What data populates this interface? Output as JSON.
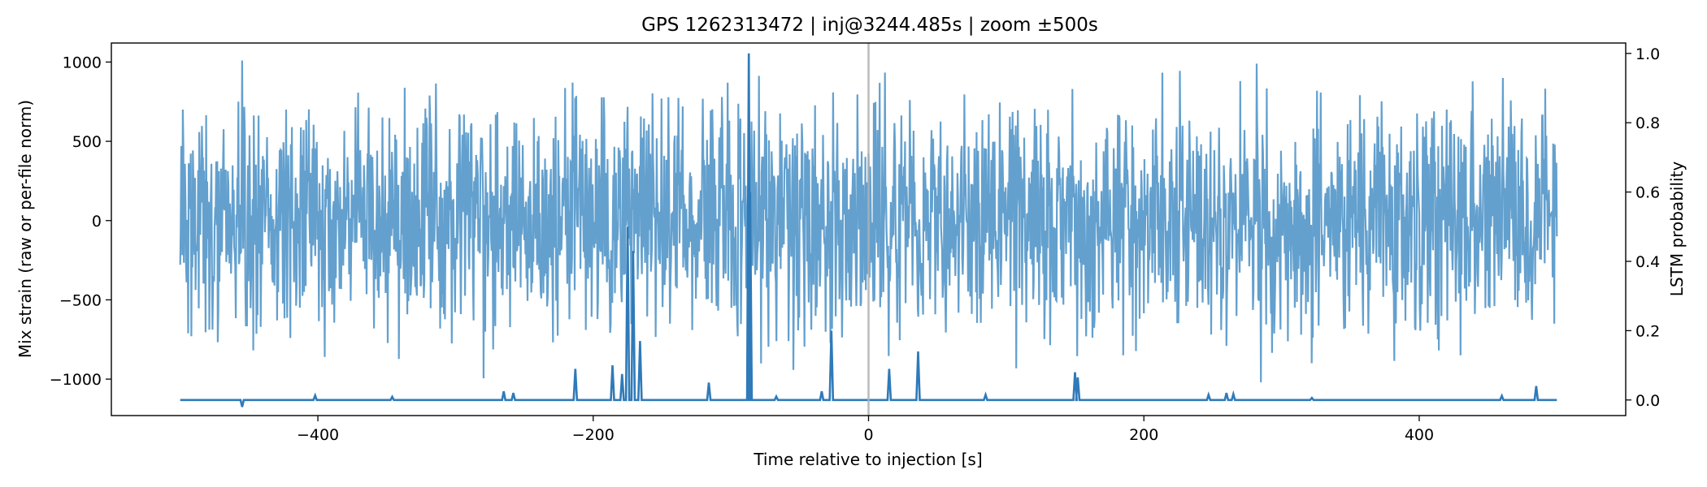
{
  "chart_data": {
    "type": "line",
    "title": "GPS 1262313472 | inj@3244.485s | zoom ±500s",
    "xlabel": "Time relative to injection [s]",
    "ylabel": "Mix strain (raw or per-file norm)",
    "y2label": "LSTM probability",
    "xlim": [
      -550,
      550
    ],
    "ylim": [
      -1230,
      1120
    ],
    "y2lim": [
      -0.045,
      1.03
    ],
    "xticks": [
      -400,
      -200,
      0,
      200,
      400
    ],
    "yticks": [
      -1000,
      -500,
      0,
      500,
      1000
    ],
    "y2ticks": [
      0.0,
      0.2,
      0.4,
      0.6,
      0.8,
      1.0
    ],
    "xtick_labels": [
      "−400",
      "−200",
      "0",
      "200",
      "400"
    ],
    "ytick_labels": [
      "−1000",
      "−500",
      "0",
      "500",
      "1000"
    ],
    "y2tick_labels": [
      "0.0",
      "0.2",
      "0.4",
      "0.6",
      "0.8",
      "1.0"
    ],
    "injection_marker_x": 0,
    "grid": false,
    "colors": {
      "strain": "#5b9bcb",
      "probability": "#2f7ab9",
      "marker": "#b0b0b0"
    },
    "series": [
      {
        "axis": "left",
        "x_range": [
          -500,
          500
        ],
        "typical_envelope": [
          -450,
          450
        ],
        "spikes": [
          [
            -498,
            700
          ],
          [
            -492,
            -730
          ],
          [
            -455,
            1010
          ],
          [
            -423,
            700
          ],
          [
            -395,
            -860
          ],
          [
            -353,
            650
          ],
          [
            -215,
            870
          ],
          [
            -135,
            720
          ],
          [
            -95,
            -730
          ],
          [
            -75,
            690
          ],
          [
            -58,
            -760
          ],
          [
            30,
            760
          ],
          [
            148,
            830
          ],
          [
            185,
            -850
          ],
          [
            270,
            880
          ],
          [
            282,
            990
          ],
          [
            285,
            -1020
          ],
          [
            322,
            -900
          ],
          [
            360,
            640
          ],
          [
            420,
            700
          ],
          [
            430,
            -850
          ],
          [
            498,
            -650
          ]
        ]
      },
      {
        "axis": "right",
        "baseline": 0.0,
        "peaks": [
          [
            -455,
            -0.02
          ],
          [
            -402,
            0.013
          ],
          [
            -346,
            0.009
          ],
          [
            -265,
            0.025
          ],
          [
            -258,
            0.02
          ],
          [
            -213,
            0.09
          ],
          [
            -186,
            0.1
          ],
          [
            -179,
            0.075
          ],
          [
            -175,
            0.5
          ],
          [
            -171,
            0.43
          ],
          [
            -166,
            0.17
          ],
          [
            -116,
            0.05
          ],
          [
            -87,
            1.0
          ],
          [
            -86,
            0.6
          ],
          [
            -67,
            0.01
          ],
          [
            -34,
            0.025
          ],
          [
            -27,
            0.2
          ],
          [
            15,
            0.09
          ],
          [
            36,
            0.14
          ],
          [
            85,
            0.015
          ],
          [
            150,
            0.08
          ],
          [
            152,
            0.065
          ],
          [
            247,
            0.015
          ],
          [
            260,
            0.02
          ],
          [
            265,
            0.017
          ],
          [
            322,
            0.006
          ],
          [
            460,
            0.012
          ],
          [
            485,
            0.04
          ]
        ]
      }
    ]
  }
}
